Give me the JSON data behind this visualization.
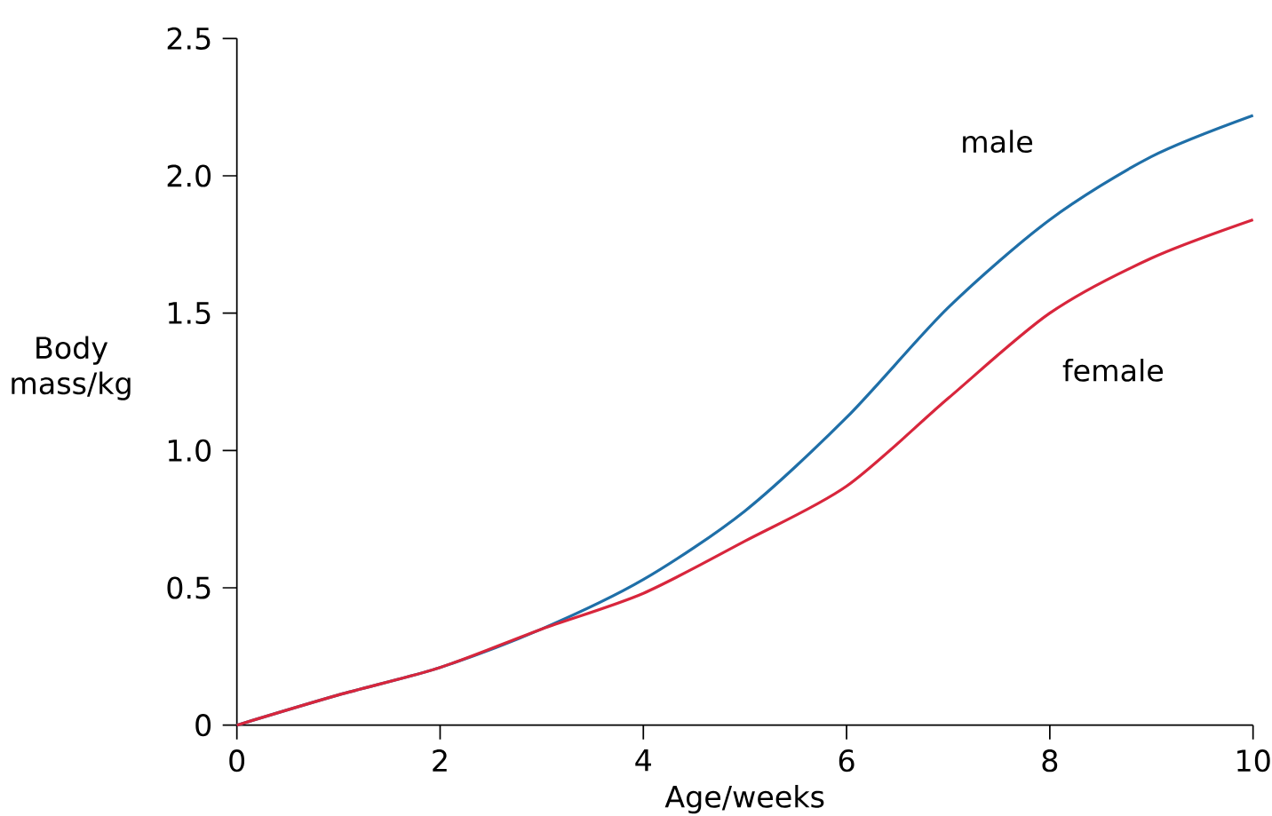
{
  "chart_data": {
    "type": "line",
    "xlabel": "Age/weeks",
    "ylabel": "Body mass/kg",
    "x": [
      0,
      1,
      2,
      3,
      4,
      5,
      6,
      7,
      8,
      9,
      10
    ],
    "series": [
      {
        "name": "male",
        "color": "#1f6fa8",
        "values": [
          0,
          0.11,
          0.21,
          0.35,
          0.53,
          0.78,
          1.12,
          1.52,
          1.84,
          2.07,
          2.22
        ]
      },
      {
        "name": "female",
        "color": "#d8263c",
        "values": [
          0,
          0.11,
          0.21,
          0.35,
          0.48,
          0.67,
          0.87,
          1.19,
          1.5,
          1.7,
          1.84
        ]
      }
    ],
    "xlim": [
      0,
      10
    ],
    "ylim": [
      0,
      2.5
    ],
    "xticks": [
      0,
      2,
      4,
      6,
      8,
      10
    ],
    "yticks": [
      0,
      0.5,
      {
        "value": 1,
        "label": "1.0"
      },
      1.5,
      {
        "value": 2,
        "label": "2.0"
      },
      2.5
    ],
    "grid": false,
    "legend": false,
    "marker": "none",
    "line_style": "solid"
  }
}
